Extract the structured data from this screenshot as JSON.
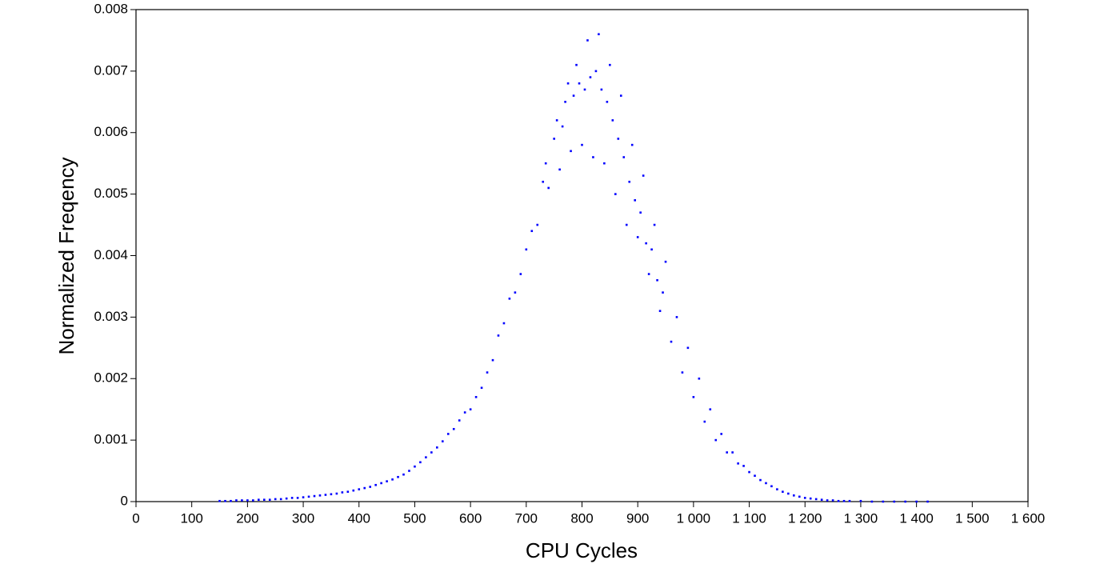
{
  "chart_data": {
    "type": "scatter",
    "x_label": "CPU Cycles",
    "y_label": "Normalized Freqency",
    "color": "#0000ff",
    "xlim": [
      0,
      1600
    ],
    "ylim": [
      0,
      0.008
    ],
    "xticks": [
      0,
      100,
      200,
      300,
      400,
      500,
      600,
      700,
      800,
      900,
      {
        "value": 1000,
        "label": "1 000"
      },
      {
        "value": 1100,
        "label": "1 100"
      },
      {
        "value": 1200,
        "label": "1 200"
      },
      {
        "value": 1300,
        "label": "1 300"
      },
      {
        "value": 1400,
        "label": "1 400"
      },
      {
        "value": 1500,
        "label": "1 500"
      },
      {
        "value": 1600,
        "label": "1 600"
      }
    ],
    "yticks": [
      0,
      0.001,
      0.002,
      0.003,
      0.004,
      0.005,
      0.006,
      0.007,
      0.008
    ],
    "x": [
      150,
      160,
      170,
      180,
      190,
      200,
      210,
      220,
      230,
      240,
      250,
      260,
      270,
      280,
      290,
      300,
      310,
      320,
      330,
      340,
      350,
      360,
      370,
      380,
      390,
      400,
      410,
      420,
      430,
      440,
      450,
      460,
      470,
      480,
      490,
      500,
      510,
      520,
      530,
      540,
      550,
      560,
      570,
      580,
      590,
      600,
      610,
      620,
      630,
      640,
      650,
      660,
      670,
      680,
      690,
      700,
      710,
      720,
      730,
      740,
      750,
      760,
      770,
      780,
      790,
      800,
      810,
      820,
      830,
      840,
      850,
      860,
      870,
      880,
      890,
      900,
      910,
      920,
      930,
      940,
      950,
      960,
      970,
      980,
      990,
      1000,
      1010,
      1020,
      1030,
      1040,
      1050,
      1060,
      1070,
      1080,
      1090,
      1100,
      1110,
      1120,
      1130,
      1140,
      1150,
      1160,
      1170,
      1180,
      1190,
      1200,
      1210,
      1220,
      1230,
      1240,
      1250,
      1260,
      1270,
      1280,
      1300,
      1320,
      1340,
      1360,
      1380,
      1400,
      1420,
      735,
      755,
      765,
      775,
      785,
      795,
      805,
      815,
      825,
      835,
      845,
      855,
      865,
      875,
      885,
      895,
      905,
      915,
      925,
      935,
      945
    ],
    "values": [
      1e-05,
      1e-05,
      1e-05,
      2e-05,
      2e-05,
      2e-05,
      2e-05,
      3e-05,
      3e-05,
      3e-05,
      4e-05,
      4e-05,
      5e-05,
      6e-05,
      6e-05,
      7e-05,
      8e-05,
      9e-05,
      0.0001,
      0.00011,
      0.00012,
      0.00013,
      0.00015,
      0.00016,
      0.00018,
      0.0002,
      0.00022,
      0.00024,
      0.00027,
      0.0003,
      0.00033,
      0.00036,
      0.0004,
      0.00044,
      0.0005,
      0.00057,
      0.00064,
      0.00072,
      0.0008,
      0.00088,
      0.00098,
      0.0011,
      0.00118,
      0.00132,
      0.00145,
      0.0015,
      0.0017,
      0.00185,
      0.0021,
      0.0023,
      0.0027,
      0.0029,
      0.0033,
      0.0034,
      0.0037,
      0.0041,
      0.0044,
      0.0045,
      0.0052,
      0.0051,
      0.0059,
      0.0054,
      0.0065,
      0.0057,
      0.0071,
      0.0058,
      0.0075,
      0.0056,
      0.0076,
      0.0055,
      0.0071,
      0.005,
      0.0066,
      0.0045,
      0.0058,
      0.0043,
      0.0053,
      0.0037,
      0.0045,
      0.0031,
      0.0039,
      0.0026,
      0.003,
      0.0021,
      0.0025,
      0.0017,
      0.002,
      0.0013,
      0.0015,
      0.001,
      0.0011,
      0.0008,
      0.0008,
      0.00062,
      0.00058,
      0.00048,
      0.00042,
      0.00035,
      0.0003,
      0.00025,
      0.0002,
      0.00016,
      0.00013,
      0.0001,
      8e-05,
      6e-05,
      5e-05,
      4e-05,
      3e-05,
      2e-05,
      2e-05,
      1e-05,
      1e-05,
      1e-05,
      1e-05,
      0,
      0,
      0,
      0,
      0,
      0,
      0.0055,
      0.0062,
      0.0061,
      0.0068,
      0.0066,
      0.0068,
      0.0067,
      0.0069,
      0.007,
      0.0067,
      0.0065,
      0.0062,
      0.0059,
      0.0056,
      0.0052,
      0.0049,
      0.0047,
      0.0042,
      0.0041,
      0.0036,
      0.0034
    ]
  }
}
